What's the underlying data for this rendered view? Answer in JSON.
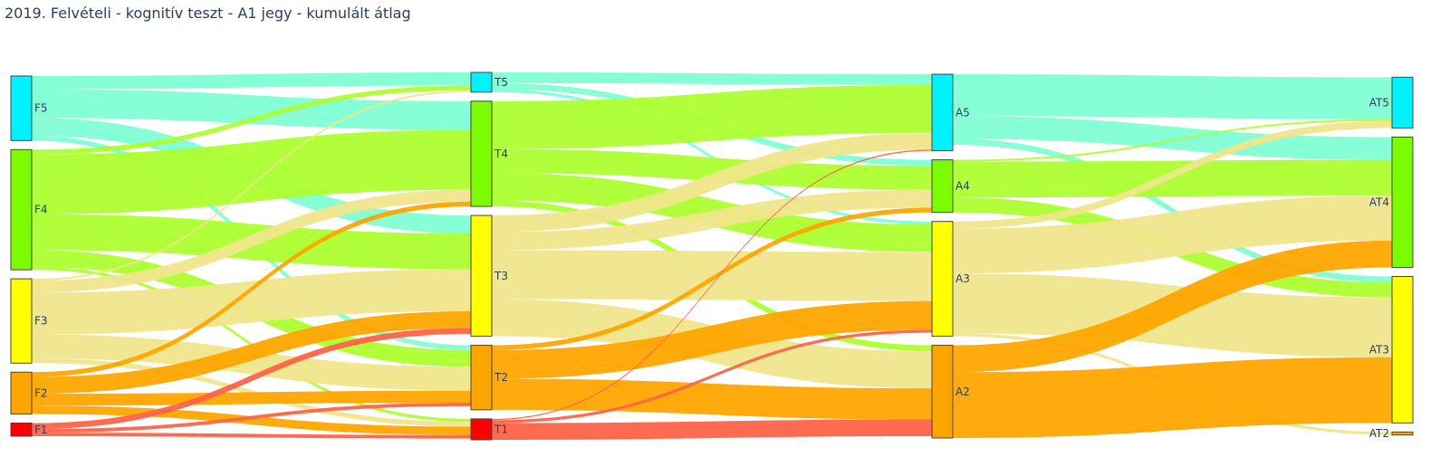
{
  "chart_data": {
    "type": "sankey",
    "title": "2019. Felvételi - kognitív teszt - A1 jegy - kumulált átlag",
    "columns": [
      [
        "F5",
        "F4",
        "F3",
        "F2",
        "F1"
      ],
      [
        "T5",
        "T4",
        "T3",
        "T2",
        "T1"
      ],
      [
        "A5",
        "A4",
        "A3",
        "A2"
      ],
      [
        "AT5",
        "AT4",
        "AT3",
        "AT2"
      ]
    ],
    "nodes": [
      {
        "id": "F5",
        "label": "F5",
        "color": "#00f2ff"
      },
      {
        "id": "F4",
        "label": "F4",
        "color": "#7cfc00"
      },
      {
        "id": "F3",
        "label": "F3",
        "color": "#ffff00"
      },
      {
        "id": "F2",
        "label": "F2",
        "color": "#ffa500"
      },
      {
        "id": "F1",
        "label": "F1",
        "color": "#ff0000"
      },
      {
        "id": "T5",
        "label": "T5",
        "color": "#00f2ff"
      },
      {
        "id": "T4",
        "label": "T4",
        "color": "#7cfc00"
      },
      {
        "id": "T3",
        "label": "T3",
        "color": "#ffff00"
      },
      {
        "id": "T2",
        "label": "T2",
        "color": "#ffa500"
      },
      {
        "id": "T1",
        "label": "T1",
        "color": "#ff0000"
      },
      {
        "id": "A5",
        "label": "A5",
        "color": "#00f2ff"
      },
      {
        "id": "A4",
        "label": "A4",
        "color": "#7cfc00"
      },
      {
        "id": "A3",
        "label": "A3",
        "color": "#ffff00"
      },
      {
        "id": "A2",
        "label": "A2",
        "color": "#ffa500"
      },
      {
        "id": "AT5",
        "label": "AT5",
        "color": "#00f2ff"
      },
      {
        "id": "AT4",
        "label": "AT4",
        "color": "#7cfc00"
      },
      {
        "id": "AT3",
        "label": "AT3",
        "color": "#ffff00"
      },
      {
        "id": "AT2",
        "label": "AT2",
        "color": "#ffa500"
      }
    ],
    "link_colors": {
      "5": "#7fffd4",
      "4": "#adff2f",
      "3": "#f0e68c",
      "2": "#ffa500",
      "1": "#ff6347"
    },
    "links": [
      {
        "source": "F5",
        "target": "T5",
        "value": 2.2,
        "grade": "5"
      },
      {
        "source": "F5",
        "target": "T4",
        "value": 4.8,
        "grade": "5"
      },
      {
        "source": "F5",
        "target": "T3",
        "value": 3.0,
        "grade": "5"
      },
      {
        "source": "F5",
        "target": "T2",
        "value": 0.8,
        "grade": "5"
      },
      {
        "source": "F4",
        "target": "T5",
        "value": 0.8,
        "grade": "4"
      },
      {
        "source": "F4",
        "target": "T4",
        "value": 10.0,
        "grade": "4"
      },
      {
        "source": "F4",
        "target": "T3",
        "value": 6.0,
        "grade": "4"
      },
      {
        "source": "F4",
        "target": "T2",
        "value": 2.8,
        "grade": "4"
      },
      {
        "source": "F4",
        "target": "T1",
        "value": 0.5,
        "grade": "4"
      },
      {
        "source": "F3",
        "target": "T5",
        "value": 0.3,
        "grade": "3"
      },
      {
        "source": "F3",
        "target": "T4",
        "value": 2.0,
        "grade": "3"
      },
      {
        "source": "F3",
        "target": "T3",
        "value": 7.0,
        "grade": "3"
      },
      {
        "source": "F3",
        "target": "T2",
        "value": 4.0,
        "grade": "3"
      },
      {
        "source": "F3",
        "target": "T1",
        "value": 0.8,
        "grade": "3"
      },
      {
        "source": "F2",
        "target": "T4",
        "value": 0.8,
        "grade": "2"
      },
      {
        "source": "F2",
        "target": "T3",
        "value": 2.8,
        "grade": "2"
      },
      {
        "source": "F2",
        "target": "T2",
        "value": 2.0,
        "grade": "2"
      },
      {
        "source": "F2",
        "target": "T1",
        "value": 1.4,
        "grade": "2"
      },
      {
        "source": "F1",
        "target": "T3",
        "value": 1.0,
        "grade": "1"
      },
      {
        "source": "F1",
        "target": "T2",
        "value": 0.6,
        "grade": "1"
      },
      {
        "source": "F1",
        "target": "T1",
        "value": 0.6,
        "grade": "1"
      },
      {
        "source": "T5",
        "target": "A5",
        "value": 1.8,
        "grade": "5"
      },
      {
        "source": "T5",
        "target": "A4",
        "value": 1.0,
        "grade": "5"
      },
      {
        "source": "T5",
        "target": "A3",
        "value": 0.5,
        "grade": "5"
      },
      {
        "source": "T4",
        "target": "A5",
        "value": 8.0,
        "grade": "4"
      },
      {
        "source": "T4",
        "target": "A4",
        "value": 4.0,
        "grade": "4"
      },
      {
        "source": "T4",
        "target": "A3",
        "value": 4.6,
        "grade": "4"
      },
      {
        "source": "T4",
        "target": "A2",
        "value": 1.0,
        "grade": "4"
      },
      {
        "source": "T3",
        "target": "A5",
        "value": 2.8,
        "grade": "3"
      },
      {
        "source": "T3",
        "target": "A4",
        "value": 3.0,
        "grade": "3"
      },
      {
        "source": "T3",
        "target": "A3",
        "value": 8.2,
        "grade": "3"
      },
      {
        "source": "T3",
        "target": "A2",
        "value": 6.2,
        "grade": "3"
      },
      {
        "source": "T2",
        "target": "A4",
        "value": 0.8,
        "grade": "2"
      },
      {
        "source": "T2",
        "target": "A3",
        "value": 4.8,
        "grade": "2"
      },
      {
        "source": "T2",
        "target": "A2",
        "value": 5.2,
        "grade": "2"
      },
      {
        "source": "T1",
        "target": "A5",
        "value": 0.2,
        "grade": "1"
      },
      {
        "source": "T1",
        "target": "A3",
        "value": 0.5,
        "grade": "1"
      },
      {
        "source": "T1",
        "target": "A2",
        "value": 2.8,
        "grade": "1"
      },
      {
        "source": "A5",
        "target": "AT5",
        "value": 7.0,
        "grade": "5"
      },
      {
        "source": "A5",
        "target": "AT4",
        "value": 3.8,
        "grade": "5"
      },
      {
        "source": "A5",
        "target": "AT3",
        "value": 1.0,
        "grade": "5"
      },
      {
        "source": "A4",
        "target": "AT5",
        "value": 0.3,
        "grade": "4"
      },
      {
        "source": "A4",
        "target": "AT4",
        "value": 6.0,
        "grade": "4"
      },
      {
        "source": "A4",
        "target": "AT3",
        "value": 2.5,
        "grade": "4"
      },
      {
        "source": "A3",
        "target": "AT5",
        "value": 1.2,
        "grade": "3"
      },
      {
        "source": "A3",
        "target": "AT4",
        "value": 7.5,
        "grade": "3"
      },
      {
        "source": "A3",
        "target": "AT3",
        "value": 10.0,
        "grade": "3"
      },
      {
        "source": "A3",
        "target": "AT2",
        "value": 0.5,
        "grade": "3"
      },
      {
        "source": "A2",
        "target": "AT4",
        "value": 4.5,
        "grade": "2"
      },
      {
        "source": "A2",
        "target": "AT3",
        "value": 11.0,
        "grade": "2"
      }
    ]
  }
}
